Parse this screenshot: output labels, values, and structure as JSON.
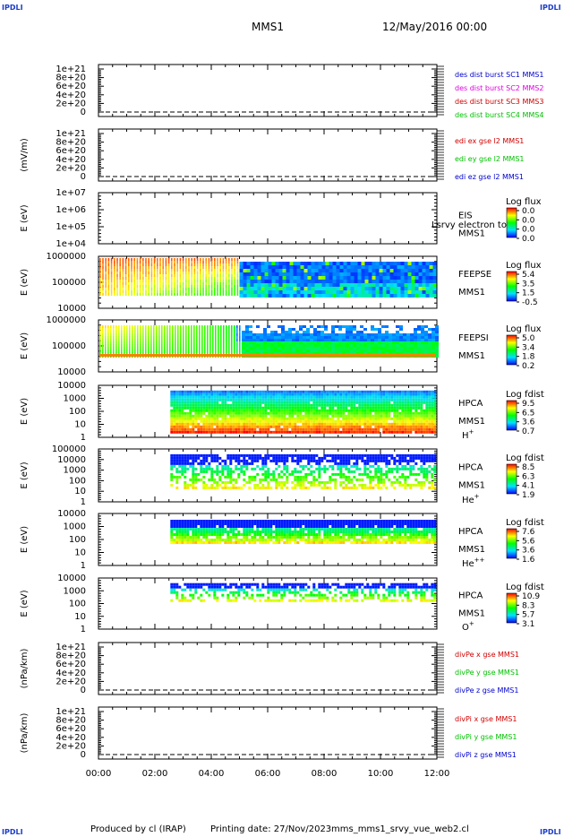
{
  "header": {
    "corner_label": "IPDLI",
    "mission": "MMS1",
    "date": "12/May/2016 00:00"
  },
  "footer": {
    "produced_by": "Produced by cl (IRAP)",
    "printing_date": "Printing date: 27/Nov/2023",
    "script": "mms_mms1_srvy_vue_web2.cl"
  },
  "colors": {
    "blue": "#0000d0",
    "magenta": "#e000e0",
    "red": "#d00000",
    "green": "#00c000"
  },
  "x_ticks": [
    "00:00",
    "02:00",
    "04:00",
    "06:00",
    "08:00",
    "10:00",
    "12:00"
  ],
  "chart_data": [
    {
      "type": "line",
      "panel": "des_dist",
      "yticks": [
        "1e+21",
        "8e+20",
        "6e+20",
        "4e+20",
        "2e+20",
        "0"
      ],
      "ylabel": "",
      "legend": [
        {
          "text": "des dist burst SC1 MMS1",
          "color": "#0000d0"
        },
        {
          "text": "des dist burst SC2 MMS2",
          "color": "#e000e0"
        },
        {
          "text": "des dist burst SC3 MMS3",
          "color": "#d00000"
        },
        {
          "text": "des dist burst SC4 MMS4",
          "color": "#00c000"
        }
      ]
    },
    {
      "type": "line",
      "panel": "edi",
      "yticks": [
        "1e+21",
        "8e+20",
        "6e+20",
        "4e+20",
        "2e+20",
        "0"
      ],
      "ylabel": "(mV/m)",
      "legend": [
        {
          "text": "edi ex gse l2 MMS1",
          "color": "#d00000"
        },
        {
          "text": "edi ey gse l2 MMS1",
          "color": "#00c000"
        },
        {
          "text": "edi ez gse l2 MMS1",
          "color": "#0000d0"
        }
      ]
    },
    {
      "type": "heatmap",
      "panel": "eis",
      "yticks": [
        "1e+07",
        "1e+06",
        "1e+05",
        "1e+04"
      ],
      "ylabel": "E (eV)",
      "side_labels": [
        "EIS",
        "MMS1"
      ],
      "overlap_text": "Lsrvy electron to",
      "colorbar": {
        "title": "Log flux",
        "ticks": [
          "0.0",
          "0.0",
          "0.0",
          "0.0"
        ]
      }
    },
    {
      "type": "heatmap",
      "panel": "feeps_e",
      "yticks": [
        "1000000",
        "100000",
        "10000"
      ],
      "ylabel": "E (eV)",
      "side_labels": [
        "FEEPSE",
        "MMS1"
      ],
      "colorbar": {
        "title": "Log flux",
        "ticks": [
          "5.4",
          "3.5",
          "1.5",
          "-0.5"
        ]
      }
    },
    {
      "type": "heatmap",
      "panel": "feeps_i",
      "yticks": [
        "1000000",
        "100000",
        "10000"
      ],
      "ylabel": "E (eV)",
      "side_labels": [
        "FEEPSI",
        "MMS1"
      ],
      "colorbar": {
        "title": "Log flux",
        "ticks": [
          "5.0",
          "3.4",
          "1.8",
          "0.2"
        ]
      }
    },
    {
      "type": "heatmap",
      "panel": "hpca_h",
      "yticks": [
        "10000",
        "1000",
        "100",
        "10",
        "1"
      ],
      "ylabel": "E (eV)",
      "side_labels": [
        "HPCA",
        "MMS1"
      ],
      "species": "H",
      "species_sup": "+",
      "colorbar": {
        "title": "Log fdist",
        "ticks": [
          "9.5",
          "6.5",
          "3.6",
          "0.7"
        ]
      }
    },
    {
      "type": "heatmap",
      "panel": "hpca_he",
      "yticks": [
        "100000",
        "10000",
        "1000",
        "100",
        "10",
        "1"
      ],
      "ylabel": "E (eV)",
      "side_labels": [
        "HPCA",
        "MMS1"
      ],
      "species": "He",
      "species_sup": "+",
      "colorbar": {
        "title": "Log fdist",
        "ticks": [
          "8.5",
          "6.3",
          "4.1",
          "1.9"
        ]
      }
    },
    {
      "type": "heatmap",
      "panel": "hpca_he2",
      "yticks": [
        "10000",
        "1000",
        "100",
        "10",
        "1"
      ],
      "ylabel": "E (eV)",
      "side_labels": [
        "HPCA",
        "MMS1"
      ],
      "species": "He",
      "species_sup": "++",
      "colorbar": {
        "title": "Log fdist",
        "ticks": [
          "7.6",
          "5.6",
          "3.6",
          "1.6"
        ]
      }
    },
    {
      "type": "heatmap",
      "panel": "hpca_o",
      "yticks": [
        "10000",
        "1000",
        "100",
        "10",
        "1"
      ],
      "ylabel": "E (eV)",
      "side_labels": [
        "HPCA",
        "MMS1"
      ],
      "species": "O",
      "species_sup": "+",
      "colorbar": {
        "title": "Log fdist",
        "ticks": [
          "10.9",
          "8.3",
          "5.7",
          "3.1"
        ]
      }
    },
    {
      "type": "line",
      "panel": "divpe",
      "yticks": [
        "1e+21",
        "8e+20",
        "6e+20",
        "4e+20",
        "2e+20",
        "0"
      ],
      "ylabel": "(nPa/km)",
      "legend": [
        {
          "text": "divPe x gse MMS1",
          "color": "#d00000"
        },
        {
          "text": "divPe y gse MMS1",
          "color": "#00c000"
        },
        {
          "text": "divPe z gse MMS1",
          "color": "#0000d0"
        }
      ]
    },
    {
      "type": "line",
      "panel": "divpi",
      "yticks": [
        "1e+21",
        "8e+20",
        "6e+20",
        "4e+20",
        "2e+20",
        "0"
      ],
      "ylabel": "(nPa/km)",
      "legend": [
        {
          "text": "divPi x gse MMS1",
          "color": "#d00000"
        },
        {
          "text": "divPi y gse MMS1",
          "color": "#00c000"
        },
        {
          "text": "divPi z gse MMS1",
          "color": "#0000d0"
        }
      ]
    }
  ]
}
